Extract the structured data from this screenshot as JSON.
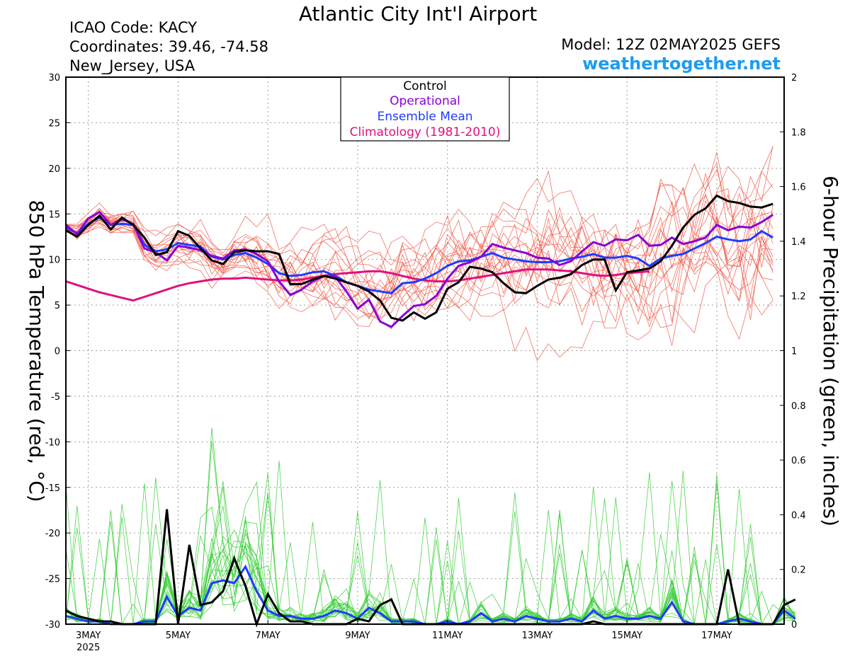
{
  "header": {
    "title": "Atlantic City Int'l Airport",
    "icao": "ICAO Code: KACY",
    "coordinates": "Coordinates: 39.46, -74.58",
    "location": "New_Jersey, USA",
    "model": "Model: 12Z 02MAY2025 GEFS",
    "site": "weathertogether.net"
  },
  "chart_data": {
    "type": "line",
    "left_axis": {
      "label": "850 hPa Temperature (red, °C)",
      "ylim": [
        -30,
        30
      ],
      "ticks": [
        "30",
        "25",
        "20",
        "15",
        "10",
        "5",
        "0",
        "-5",
        "-10",
        "-15",
        "-20",
        "-25",
        "-30"
      ]
    },
    "right_axis": {
      "label": "6-hour Precipitation (green, inches)",
      "ylim": [
        0,
        2
      ],
      "ticks": [
        "2",
        "1.8",
        "1.6",
        "1.4",
        "1.2",
        "1",
        "0.8",
        "0.6",
        "0.4",
        "0.2",
        "0"
      ]
    },
    "x_axis": {
      "unit": "forecast hours from 12Z 02MAY2025",
      "range": [
        0,
        384
      ],
      "ticks": [
        {
          "label": "3MAY",
          "sub": "2025",
          "hour": 12
        },
        {
          "label": "5MAY",
          "hour": 60
        },
        {
          "label": "7MAY",
          "hour": 108
        },
        {
          "label": "9MAY",
          "hour": 156
        },
        {
          "label": "11MAY",
          "hour": 204
        },
        {
          "label": "13MAY",
          "hour": 252
        },
        {
          "label": "15MAY",
          "hour": 300
        },
        {
          "label": "17MAY",
          "hour": 348
        }
      ]
    },
    "grid": true,
    "legend": {
      "placement": "top-center",
      "entries": [
        {
          "label": "Control",
          "color": "#000000"
        },
        {
          "label": "Operational",
          "color": "#8a00d4"
        },
        {
          "label": "Ensemble Mean",
          "color": "#1f3cff"
        },
        {
          "label": "Climatology (1981-2010)",
          "color": "#e0117f"
        }
      ]
    },
    "colors": {
      "members_temp": "#f05a4a",
      "members_precip": "#33cc33",
      "control": "#000000",
      "operational": "#8a00d4",
      "mean": "#1f3cff",
      "climatology": "#e0117f"
    },
    "step_hours": 6,
    "temperature": {
      "control": [
        13.2,
        12.5,
        13.8,
        14.8,
        13.3,
        14.6,
        13.8,
        12.4,
        10.5,
        10.8,
        13.1,
        12.6,
        11.2,
        9.9,
        9.5,
        10.8,
        11.0,
        10.9,
        10.9,
        10.6,
        7.3,
        7.3,
        7.8,
        8.2,
        7.9,
        7.5,
        7.1,
        6.5,
        5.5,
        3.6,
        3.3,
        4.2,
        3.5,
        4.2,
        6.8,
        7.5,
        9.2,
        9.0,
        8.6,
        7.4,
        6.4,
        6.3,
        7.1,
        7.8,
        8.0,
        8.4,
        9.4,
        10.0,
        10.0,
        6.6,
        8.6,
        8.8,
        9.0,
        9.8,
        11.5,
        13.5,
        14.9,
        15.6,
        17.0,
        16.4,
        16.2,
        15.8,
        15.7,
        16.1
      ],
      "operational": [
        13.8,
        12.8,
        14.5,
        15.2,
        13.8,
        14.4,
        13.9,
        11.2,
        10.8,
        9.9,
        11.5,
        11.3,
        11.0,
        10.4,
        10.1,
        11.0,
        11.1,
        10.6,
        9.8,
        7.6,
        6.1,
        6.7,
        7.6,
        8.2,
        8.1,
        6.5,
        4.6,
        5.6,
        3.2,
        2.6,
        3.8,
        4.9,
        5.1,
        6.0,
        7.9,
        9.3,
        9.7,
        10.3,
        11.7,
        11.3,
        11.0,
        10.7,
        10.2,
        10.1,
        9.4,
        9.8,
        10.9,
        11.9,
        11.5,
        12.2,
        12.1,
        12.7,
        11.5,
        11.6,
        12.4,
        11.7,
        12.0,
        12.4,
        13.8,
        13.2,
        13.6,
        13.5,
        14.1,
        14.9
      ],
      "mean": [
        13.5,
        12.9,
        13.9,
        14.6,
        13.8,
        13.9,
        13.8,
        11.6,
        10.9,
        11.1,
        11.8,
        11.6,
        11.4,
        10.3,
        10.0,
        10.5,
        10.7,
        10.2,
        9.5,
        8.5,
        8.2,
        8.3,
        8.6,
        8.7,
        8.2,
        7.5,
        7.1,
        6.7,
        6.5,
        6.3,
        7.4,
        7.5,
        7.9,
        8.5,
        9.3,
        9.8,
        9.9,
        10.3,
        10.7,
        10.2,
        10.0,
        9.8,
        9.7,
        9.7,
        9.8,
        10.1,
        10.3,
        10.6,
        10.2,
        10.2,
        10.4,
        10.1,
        9.3,
        10.1,
        10.4,
        10.6,
        11.2,
        11.8,
        12.5,
        12.2,
        12.0,
        12.2,
        13.1,
        12.4
      ],
      "climatology": [
        7.6,
        7.2,
        6.8,
        6.4,
        6.1,
        5.8,
        5.5,
        5.9,
        6.3,
        6.7,
        7.1,
        7.4,
        7.6,
        7.8,
        7.9,
        7.9,
        8.0,
        7.9,
        7.8,
        7.7,
        7.7,
        7.8,
        8.0,
        8.2,
        8.4,
        8.5,
        8.6,
        8.7,
        8.7,
        8.5,
        8.2,
        7.9,
        7.7,
        7.6,
        7.6,
        7.7,
        7.9,
        8.1,
        8.3,
        8.5,
        8.7,
        8.9,
        8.9,
        8.9,
        8.8,
        8.7,
        8.5,
        8.3,
        8.2,
        8.3,
        8.5,
        8.6,
        8.7
      ]
    },
    "precipitation": {
      "control": [
        0.05,
        0.03,
        0.02,
        0.01,
        0.01,
        0.0,
        0.0,
        0.0,
        0.0,
        0.42,
        0.0,
        0.29,
        0.07,
        0.08,
        0.12,
        0.24,
        0.14,
        0.0,
        0.11,
        0.04,
        0.01,
        0.01,
        0.0,
        0.0,
        0.0,
        0.0,
        0.02,
        0.01,
        0.07,
        0.09,
        0.0,
        0.0,
        0.0,
        0.0,
        0.0,
        0.0,
        0.0,
        0.0,
        0.0,
        0.0,
        0.0,
        0.0,
        0.0,
        0.0,
        0.0,
        0.0,
        0.0,
        0.01,
        0.0,
        0.0,
        0.0,
        0.0,
        0.0,
        0.0,
        0.0,
        0.0,
        0.0,
        0.0,
        0.0,
        0.2,
        0.0,
        0.0,
        0.0,
        0.0,
        0.07,
        0.09
      ],
      "mean": [
        0.03,
        0.02,
        0.01,
        0.01,
        0.0,
        0.0,
        0.0,
        0.01,
        0.01,
        0.1,
        0.03,
        0.06,
        0.05,
        0.15,
        0.16,
        0.15,
        0.21,
        0.12,
        0.05,
        0.03,
        0.03,
        0.02,
        0.02,
        0.03,
        0.05,
        0.04,
        0.02,
        0.06,
        0.04,
        0.01,
        0.01,
        0.01,
        0.0,
        0.0,
        0.01,
        0.0,
        0.01,
        0.04,
        0.01,
        0.02,
        0.01,
        0.03,
        0.02,
        0.01,
        0.01,
        0.02,
        0.01,
        0.05,
        0.02,
        0.03,
        0.02,
        0.02,
        0.03,
        0.02,
        0.08,
        0.01,
        0.0,
        0.0,
        0.0,
        0.01,
        0.02,
        0.01,
        0.0,
        0.0,
        0.05,
        0.02
      ]
    }
  }
}
